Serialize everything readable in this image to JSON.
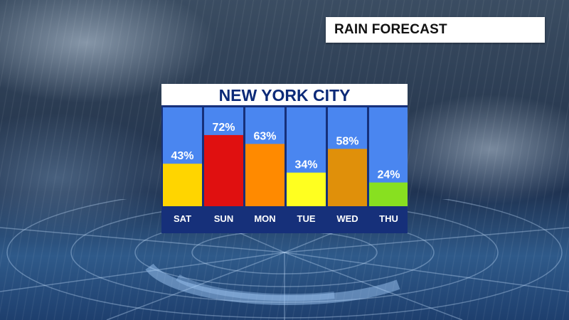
{
  "header": {
    "label": "RAIN FORECAST"
  },
  "chart_data": {
    "type": "bar",
    "title": "NEW YORK CITY",
    "categories": [
      "SAT",
      "SUN",
      "MON",
      "TUE",
      "WED",
      "THU"
    ],
    "values": [
      43,
      72,
      63,
      34,
      58,
      24
    ],
    "value_labels": [
      "43%",
      "72%",
      "63%",
      "34%",
      "58%",
      "24%"
    ],
    "bar_colors": [
      "#ffd500",
      "#e01010",
      "#ff8a00",
      "#ffff20",
      "#e0900a",
      "#88e020"
    ],
    "column_background": "#4a86f0",
    "ylim": [
      0,
      100
    ],
    "grid": false,
    "legend": "none"
  }
}
